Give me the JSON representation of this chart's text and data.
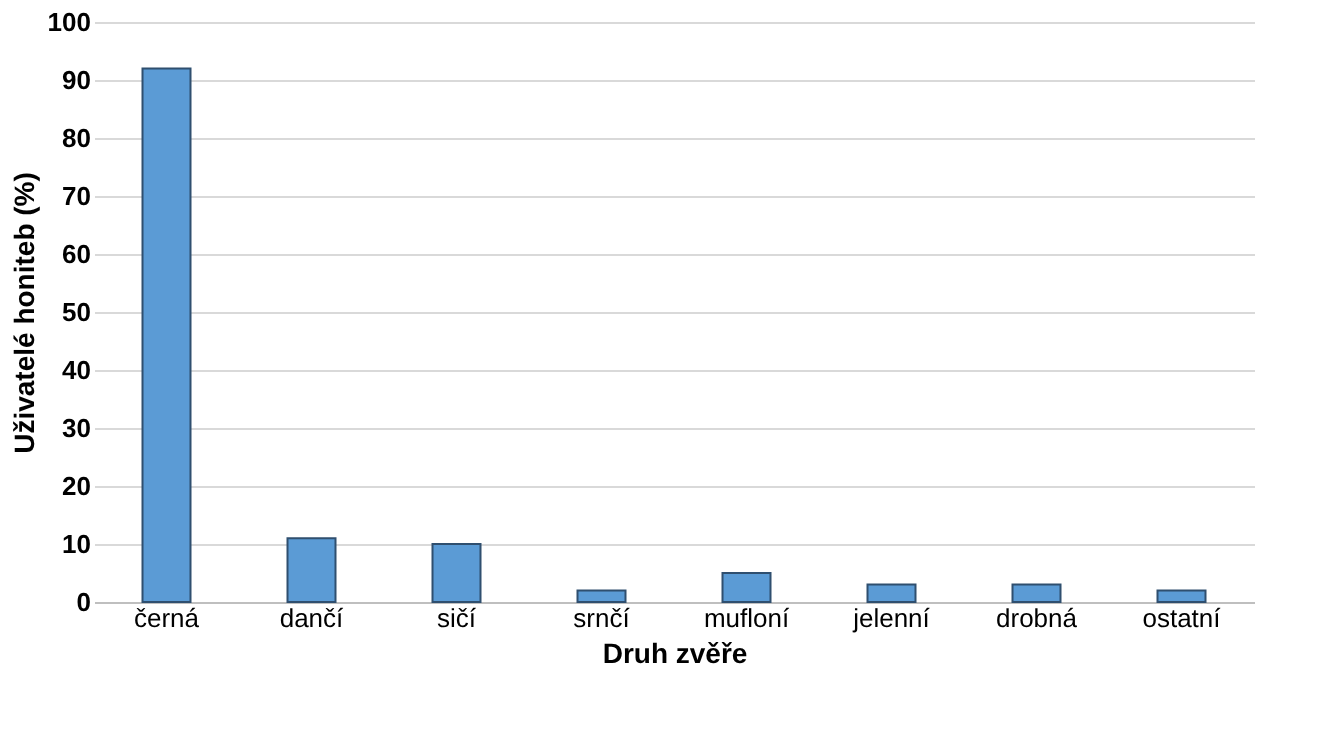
{
  "chart_data": {
    "type": "bar",
    "xlabel": "Druh zvěře",
    "ylabel": "Uživatelé honiteb (%)",
    "categories": [
      "černá",
      "dančí",
      "sičí",
      "srnčí",
      "mufloní",
      "jelenní",
      "drobná",
      "ostatní"
    ],
    "values": [
      92,
      11,
      10,
      2,
      5,
      3,
      3,
      2
    ],
    "color": "#5b9bd5",
    "ylim": [
      0,
      100
    ],
    "yticks": [
      0,
      10,
      20,
      30,
      40,
      50,
      60,
      70,
      80,
      90,
      100
    ],
    "grid": "y"
  }
}
